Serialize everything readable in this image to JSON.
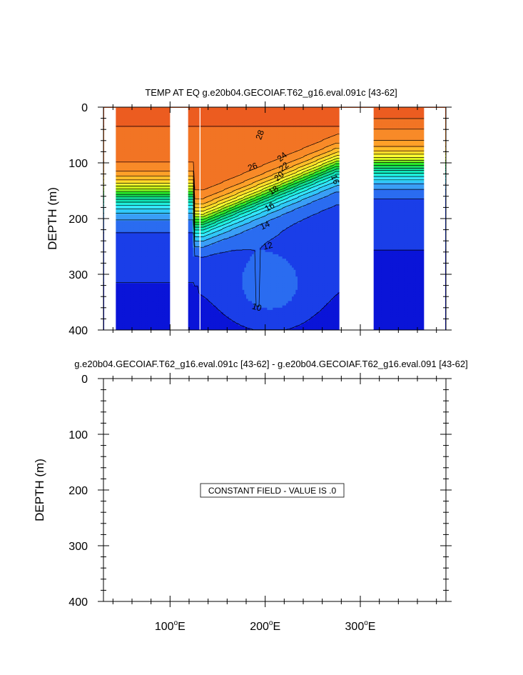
{
  "chart_data": [
    {
      "type": "contour",
      "title": "TEMP AT EQ g.e20b04.GECOIAF.T62_g16.eval.091c [43-62]",
      "ylabel": "DEPTH (m)",
      "xlabel": "",
      "x_unit": "degrees E (0-360)",
      "xlim": [
        30,
        390
      ],
      "ylim": [
        0,
        400
      ],
      "y_inverted": true,
      "yticks": [
        "0",
        "100",
        "200",
        "300",
        "400"
      ],
      "y_tick_values": [
        0,
        100,
        200,
        300,
        400
      ],
      "x_tick_values": [
        100,
        200,
        300
      ],
      "contour_interval": 1,
      "contour_range": [
        4,
        29
      ],
      "contour_labels": [
        {
          "text": "28",
          "lon": 195,
          "depth": 50,
          "angle": -70
        },
        {
          "text": "26",
          "lon": 187,
          "depth": 108,
          "angle": -20
        },
        {
          "text": "24",
          "lon": 218,
          "depth": 90,
          "angle": -40
        },
        {
          "text": "22",
          "lon": 220,
          "depth": 108,
          "angle": -40
        },
        {
          "text": "20",
          "lon": 215,
          "depth": 125,
          "angle": -40
        },
        {
          "text": "18",
          "lon": 209,
          "depth": 150,
          "angle": -35
        },
        {
          "text": "16",
          "lon": 205,
          "depth": 180,
          "angle": -30
        },
        {
          "text": "16",
          "lon": 273,
          "depth": 130,
          "angle": 70
        },
        {
          "text": "14",
          "lon": 200,
          "depth": 213,
          "angle": -25
        },
        {
          "text": "12",
          "lon": 203,
          "depth": 250,
          "angle": -15
        },
        {
          "text": "10",
          "lon": 191,
          "depth": 360,
          "angle": 15
        }
      ],
      "land_masks_lon": [
        [
          100,
          119
        ],
        [
          131,
          132
        ],
        [
          278,
          314
        ]
      ],
      "color_scale": [
        "#0a14d8",
        "#1a3ee8",
        "#2a6cf0",
        "#3a9ef6",
        "#30c8f8",
        "#34e6ff",
        "#20f0e0",
        "#10e6b8",
        "#12dc8a",
        "#14dc50",
        "#2aec2a",
        "#7cf022",
        "#c8f01a",
        "#ffff32",
        "#ffde28",
        "#ffbe28",
        "#ffa028",
        "#f88a28",
        "#f27424",
        "#ec5c20",
        "#e6401a",
        "#e02814",
        "#e0140e"
      ]
    },
    {
      "type": "contour",
      "title": "g.e20b04.GECOIAF.T62_g16.eval.091c [43-62] - g.e20b04.GECOIAF.T62_g16.eval.091 [43-62]",
      "ylabel": "DEPTH (m)",
      "xlabel": "",
      "xlim": [
        30,
        390
      ],
      "ylim": [
        0,
        400
      ],
      "y_inverted": true,
      "yticks": [
        "0",
        "100",
        "200",
        "300",
        "400"
      ],
      "y_tick_values": [
        0,
        100,
        200,
        300,
        400
      ],
      "x_tick_values": [
        100,
        200,
        300
      ],
      "annotation": "CONSTANT FIELD - VALUE IS .0",
      "xticks": [
        {
          "number": "100",
          "unit": "E"
        },
        {
          "number": "200",
          "unit": "E"
        },
        {
          "number": "300",
          "unit": "E"
        }
      ],
      "degree_symbol": "o"
    }
  ]
}
